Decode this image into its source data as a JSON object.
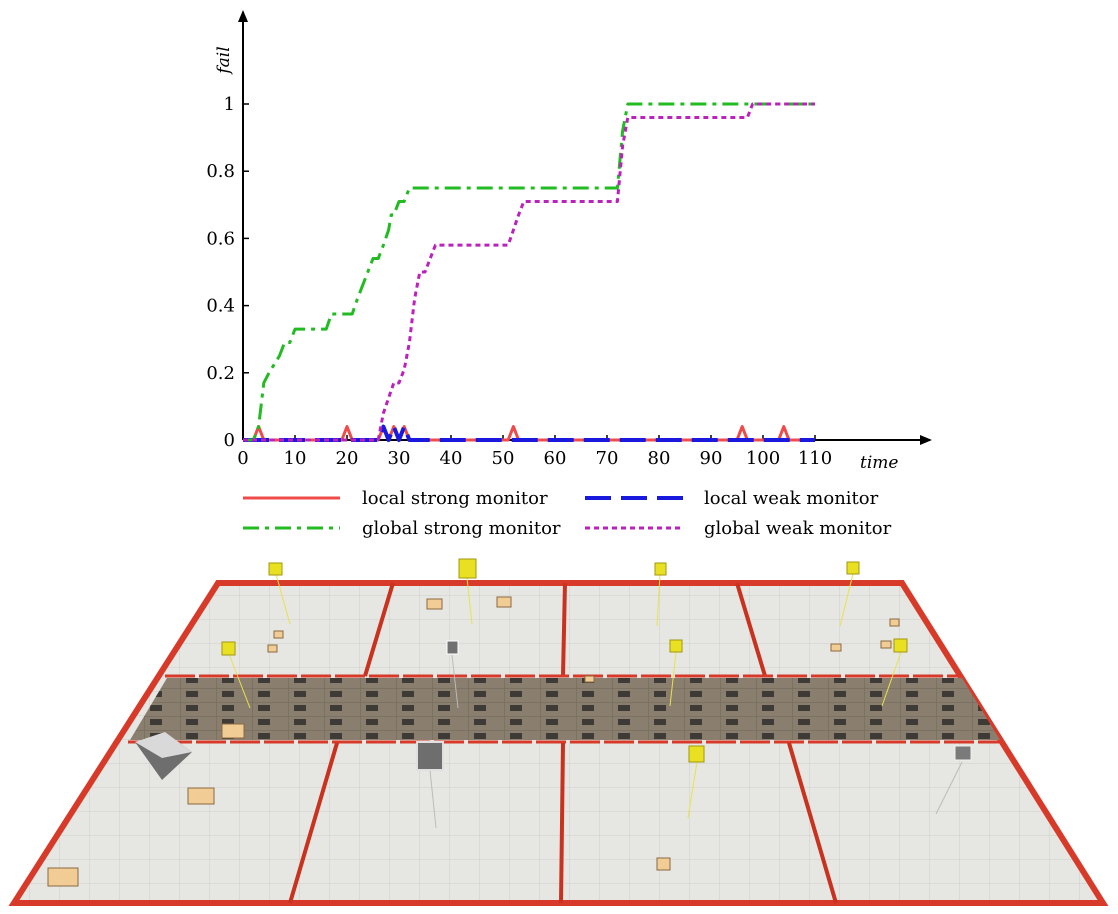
{
  "chart_data": {
    "type": "line",
    "xlabel": "time",
    "ylabel": "fail",
    "xlim": [
      0,
      110
    ],
    "ylim": [
      0,
      1
    ],
    "xticks": [
      "0",
      "10",
      "20",
      "30",
      "40",
      "50",
      "60",
      "70",
      "80",
      "90",
      "100",
      "110"
    ],
    "yticks": [
      "0",
      "0.2",
      "0.4",
      "0.6",
      "0.8",
      "1"
    ],
    "legend_placement": "bottom",
    "series": [
      {
        "name": "local strong monitor",
        "color": "#ef4b4b",
        "dash": "solid",
        "points": [
          [
            0,
            0
          ],
          [
            2,
            0
          ],
          [
            3,
            0.04
          ],
          [
            4,
            0
          ],
          [
            19,
            0
          ],
          [
            20,
            0.04
          ],
          [
            21,
            0
          ],
          [
            26,
            0
          ],
          [
            27,
            0.04
          ],
          [
            28,
            0
          ],
          [
            29,
            0.04
          ],
          [
            30,
            0
          ],
          [
            31,
            0.04
          ],
          [
            32,
            0
          ],
          [
            51,
            0
          ],
          [
            52,
            0.04
          ],
          [
            53,
            0
          ],
          [
            95,
            0
          ],
          [
            96,
            0.04
          ],
          [
            97,
            0
          ],
          [
            103,
            0
          ],
          [
            104,
            0.04
          ],
          [
            105,
            0
          ],
          [
            110,
            0
          ]
        ]
      },
      {
        "name": "local weak monitor",
        "color": "#1a1adf",
        "dash": "long-dash",
        "points": [
          [
            0,
            0
          ],
          [
            26,
            0
          ],
          [
            27,
            0.04
          ],
          [
            28,
            0
          ],
          [
            29,
            0.04
          ],
          [
            30,
            0
          ],
          [
            31,
            0.04
          ],
          [
            32,
            0
          ],
          [
            110,
            0
          ]
        ]
      },
      {
        "name": "global strong monitor",
        "color": "#22bb22",
        "dash": "dash-dot",
        "points": [
          [
            0,
            0
          ],
          [
            2,
            0
          ],
          [
            3,
            0.04
          ],
          [
            4,
            0.17
          ],
          [
            5,
            0.2
          ],
          [
            7,
            0.25
          ],
          [
            8,
            0.29
          ],
          [
            9,
            0.29
          ],
          [
            10,
            0.33
          ],
          [
            16,
            0.33
          ],
          [
            17,
            0.375
          ],
          [
            21,
            0.375
          ],
          [
            22,
            0.42
          ],
          [
            23,
            0.46
          ],
          [
            24,
            0.5
          ],
          [
            25,
            0.54
          ],
          [
            26,
            0.54
          ],
          [
            27,
            0.58
          ],
          [
            28,
            0.625
          ],
          [
            28.5,
            0.67
          ],
          [
            29,
            0.67
          ],
          [
            30,
            0.71
          ],
          [
            31,
            0.71
          ],
          [
            32,
            0.75
          ],
          [
            72,
            0.75
          ],
          [
            73,
            0.92
          ],
          [
            74,
            1
          ],
          [
            110,
            1
          ]
        ]
      },
      {
        "name": "global weak monitor",
        "color": "#bb22bb",
        "dash": "dotted",
        "points": [
          [
            0,
            0
          ],
          [
            26,
            0
          ],
          [
            27,
            0.08
          ],
          [
            28,
            0.125
          ],
          [
            29,
            0.17
          ],
          [
            30,
            0.17
          ],
          [
            31,
            0.21
          ],
          [
            32,
            0.29
          ],
          [
            33,
            0.42
          ],
          [
            34,
            0.5
          ],
          [
            35,
            0.5
          ],
          [
            36,
            0.54
          ],
          [
            37,
            0.58
          ],
          [
            51,
            0.58
          ],
          [
            52,
            0.625
          ],
          [
            53,
            0.67
          ],
          [
            54,
            0.71
          ],
          [
            72,
            0.71
          ],
          [
            73,
            0.875
          ],
          [
            74,
            0.96
          ],
          [
            97,
            0.96
          ],
          [
            98,
            1
          ],
          [
            110,
            1
          ]
        ]
      }
    ]
  }
}
